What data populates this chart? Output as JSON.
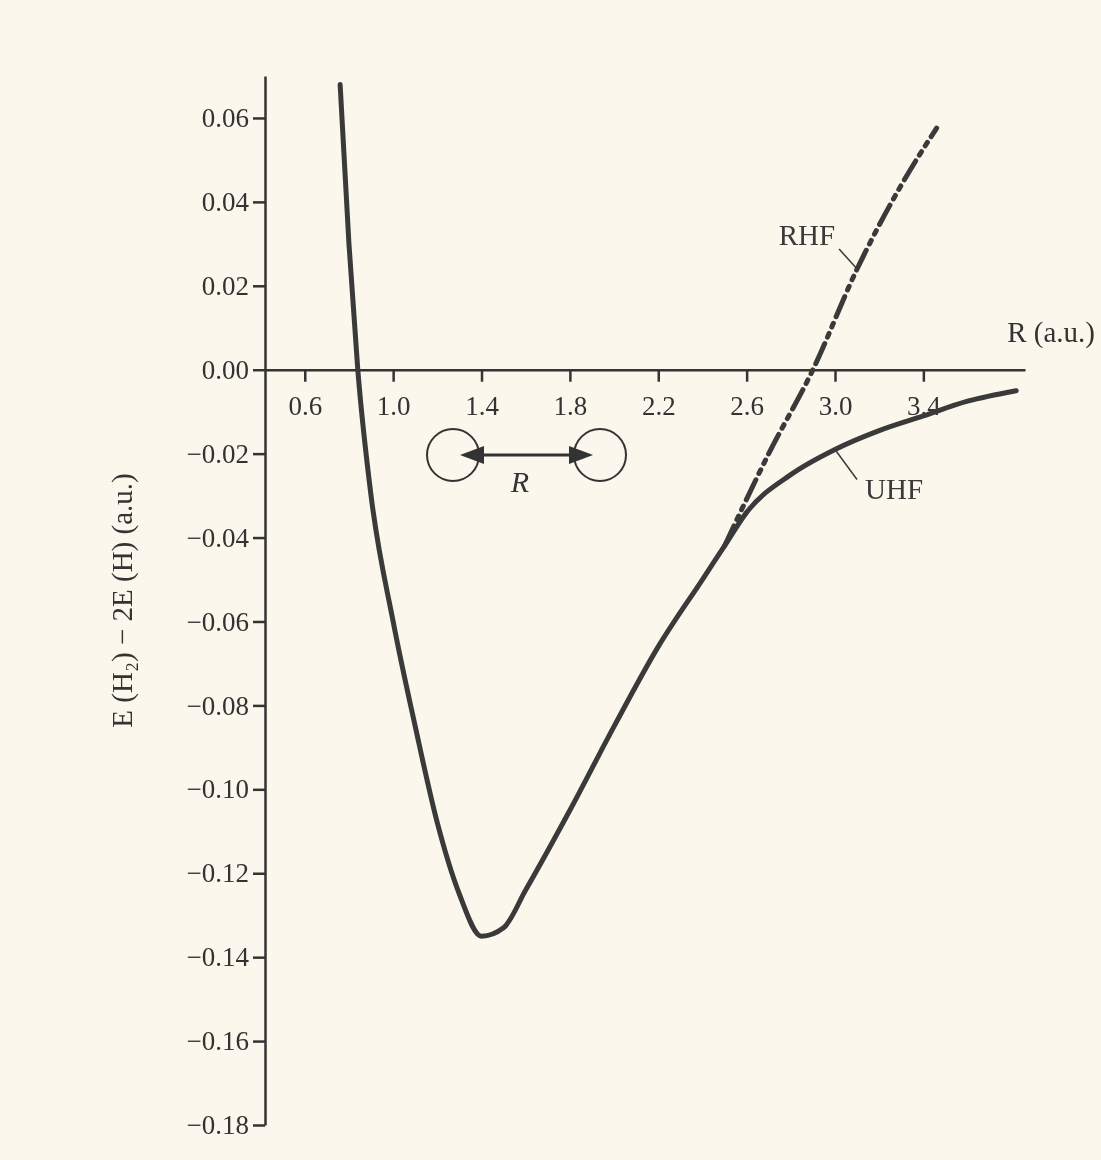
{
  "chart_data": {
    "type": "line",
    "xlabel": "R (a.u.)",
    "ylabel": "E (H₂) − 2E (H) (a.u.)",
    "xlim": [
      0.42,
      3.86
    ],
    "ylim": [
      -0.18,
      0.07
    ],
    "xticks": [
      0.6,
      {
        "value": 1.0,
        "label": "1.0"
      },
      1.4,
      1.8,
      2.2,
      2.6,
      {
        "value": 3.0,
        "label": "3.0"
      },
      3.4
    ],
    "yticks": [
      {
        "value": 0.06,
        "label": "0.06"
      },
      {
        "value": 0.04,
        "label": "0.04"
      },
      {
        "value": 0.02,
        "label": "0.02"
      },
      {
        "value": 0,
        "label": "0.00"
      },
      {
        "value": -0.02,
        "label": "−0.02"
      },
      {
        "value": -0.04,
        "label": "−0.04"
      },
      {
        "value": -0.06,
        "label": "−0.06"
      },
      {
        "value": -0.08,
        "label": "−0.08"
      },
      {
        "value": -0.1,
        "label": "−0.10"
      },
      {
        "value": -0.12,
        "label": "−0.12"
      },
      {
        "value": -0.14,
        "label": "−0.14"
      },
      {
        "value": -0.16,
        "label": "−0.16"
      },
      {
        "value": -0.18,
        "label": "−0.18"
      }
    ],
    "grid": false,
    "series": [
      {
        "name": "UHF",
        "color": "#3a3a3a",
        "line_style": "solid",
        "x": [
          0.76,
          0.8,
          0.84,
          0.9,
          1.0,
          1.1,
          1.2,
          1.3,
          1.4,
          1.5,
          1.6,
          1.8,
          2.0,
          2.2,
          2.4,
          2.5,
          2.6,
          2.8,
          3.0,
          3.2,
          3.4,
          3.6,
          3.82
        ],
        "values": [
          0.068,
          0.03,
          0.0,
          -0.03,
          -0.06,
          -0.085,
          -0.108,
          -0.125,
          -0.135,
          -0.133,
          -0.124,
          -0.105,
          -0.085,
          -0.066,
          -0.05,
          -0.042,
          -0.034,
          -0.025,
          -0.019,
          -0.0145,
          -0.011,
          -0.0075,
          -0.005
        ]
      },
      {
        "name": "RHF",
        "color": "#3a3a3a",
        "line_style": "dashed",
        "x": [
          2.5,
          2.7,
          2.9,
          3.1,
          3.3,
          3.46
        ],
        "values": [
          -0.042,
          -0.02,
          0.0,
          0.024,
          0.044,
          0.0576
        ]
      }
    ],
    "annotations": [
      "R"
    ]
  }
}
